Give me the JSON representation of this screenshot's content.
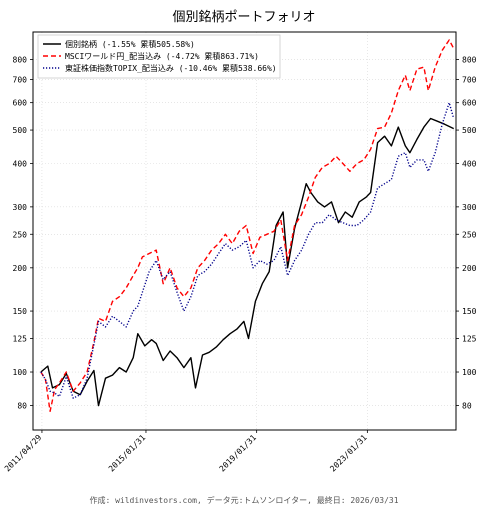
{
  "chart_data": {
    "type": "line",
    "title": "個別銘柄ポートフォリオ",
    "y_scale": "log",
    "ylim": [
      68,
      960
    ],
    "yticks": [
      80,
      100,
      125,
      150,
      200,
      250,
      300,
      400,
      500,
      600,
      700,
      800
    ],
    "x_range": [
      "2011-01-01",
      "2026-04-15"
    ],
    "x_ticks": [
      "2011/04/29",
      "2015/01/31",
      "2019/01/31",
      "2023/01/31"
    ],
    "grid": true,
    "legend_position": "top-left",
    "series": [
      {
        "name": "個別銘柄 (-1.55% 累積505.58%)",
        "color": "#000000",
        "style": "solid",
        "points": [
          [
            "2011-04",
            100
          ],
          [
            "2011-07",
            104
          ],
          [
            "2011-09",
            90
          ],
          [
            "2011-12",
            92
          ],
          [
            "2012-03",
            99
          ],
          [
            "2012-06",
            88
          ],
          [
            "2012-09",
            86
          ],
          [
            "2012-12",
            94
          ],
          [
            "2013-03",
            101
          ],
          [
            "2013-05",
            80
          ],
          [
            "2013-08",
            96
          ],
          [
            "2013-11",
            98
          ],
          [
            "2014-02",
            103
          ],
          [
            "2014-05",
            100
          ],
          [
            "2014-08",
            110
          ],
          [
            "2014-10",
            129
          ],
          [
            "2015-01",
            119
          ],
          [
            "2015-04",
            124
          ],
          [
            "2015-06",
            121
          ],
          [
            "2015-09",
            108
          ],
          [
            "2015-12",
            115
          ],
          [
            "2016-03",
            110
          ],
          [
            "2016-06",
            103
          ],
          [
            "2016-09",
            110
          ],
          [
            "2016-11",
            90
          ],
          [
            "2017-02",
            112
          ],
          [
            "2017-05",
            114
          ],
          [
            "2017-08",
            118
          ],
          [
            "2017-11",
            124
          ],
          [
            "2018-02",
            129
          ],
          [
            "2018-05",
            133
          ],
          [
            "2018-08",
            140
          ],
          [
            "2018-10",
            125
          ],
          [
            "2019-01",
            160
          ],
          [
            "2019-04",
            180
          ],
          [
            "2019-07",
            195
          ],
          [
            "2019-10",
            265
          ],
          [
            "2020-01",
            290
          ],
          [
            "2020-03",
            200
          ],
          [
            "2020-06",
            260
          ],
          [
            "2020-09",
            310
          ],
          [
            "2020-11",
            350
          ],
          [
            "2021-01",
            330
          ],
          [
            "2021-04",
            310
          ],
          [
            "2021-07",
            300
          ],
          [
            "2021-10",
            310
          ],
          [
            "2022-01",
            270
          ],
          [
            "2022-04",
            290
          ],
          [
            "2022-07",
            280
          ],
          [
            "2022-10",
            310
          ],
          [
            "2023-01",
            320
          ],
          [
            "2023-03",
            330
          ],
          [
            "2023-06",
            460
          ],
          [
            "2023-09",
            480
          ],
          [
            "2023-12",
            450
          ],
          [
            "2024-03",
            510
          ],
          [
            "2024-06",
            450
          ],
          [
            "2024-08",
            430
          ],
          [
            "2024-11",
            470
          ],
          [
            "2025-02",
            510
          ],
          [
            "2025-05",
            540
          ],
          [
            "2025-08",
            530
          ],
          [
            "2025-11",
            520
          ],
          [
            "2026-03",
            505
          ]
        ]
      },
      {
        "name": "MSCIワールド円_配当込み (-4.72% 累積863.71%)",
        "color": "#ff0000",
        "style": "dashed",
        "points": [
          [
            "2011-04",
            100
          ],
          [
            "2011-06",
            95
          ],
          [
            "2011-08",
            77
          ],
          [
            "2011-10",
            89
          ],
          [
            "2011-12",
            93
          ],
          [
            "2012-03",
            100
          ],
          [
            "2012-06",
            88
          ],
          [
            "2012-09",
            93
          ],
          [
            "2012-12",
            100
          ],
          [
            "2013-03",
            122
          ],
          [
            "2013-05",
            143
          ],
          [
            "2013-08",
            140
          ],
          [
            "2013-11",
            160
          ],
          [
            "2014-02",
            165
          ],
          [
            "2014-05",
            175
          ],
          [
            "2014-08",
            190
          ],
          [
            "2014-10",
            200
          ],
          [
            "2014-12",
            215
          ],
          [
            "2015-03",
            220
          ],
          [
            "2015-06",
            225
          ],
          [
            "2015-09",
            180
          ],
          [
            "2015-12",
            200
          ],
          [
            "2016-03",
            175
          ],
          [
            "2016-06",
            165
          ],
          [
            "2016-09",
            175
          ],
          [
            "2016-12",
            200
          ],
          [
            "2017-03",
            210
          ],
          [
            "2017-06",
            225
          ],
          [
            "2017-09",
            235
          ],
          [
            "2017-12",
            250
          ],
          [
            "2018-03",
            235
          ],
          [
            "2018-06",
            255
          ],
          [
            "2018-09",
            265
          ],
          [
            "2018-12",
            220
          ],
          [
            "2019-03",
            245
          ],
          [
            "2019-06",
            250
          ],
          [
            "2019-09",
            255
          ],
          [
            "2019-12",
            275
          ],
          [
            "2020-03",
            210
          ],
          [
            "2020-06",
            265
          ],
          [
            "2020-09",
            285
          ],
          [
            "2020-12",
            320
          ],
          [
            "2021-03",
            365
          ],
          [
            "2021-06",
            390
          ],
          [
            "2021-09",
            400
          ],
          [
            "2021-12",
            420
          ],
          [
            "2022-03",
            400
          ],
          [
            "2022-06",
            380
          ],
          [
            "2022-09",
            400
          ],
          [
            "2022-12",
            410
          ],
          [
            "2023-03",
            440
          ],
          [
            "2023-06",
            505
          ],
          [
            "2023-09",
            510
          ],
          [
            "2023-12",
            560
          ],
          [
            "2024-03",
            650
          ],
          [
            "2024-06",
            720
          ],
          [
            "2024-08",
            650
          ],
          [
            "2024-11",
            750
          ],
          [
            "2025-02",
            760
          ],
          [
            "2025-04",
            650
          ],
          [
            "2025-07",
            760
          ],
          [
            "2025-10",
            850
          ],
          [
            "2026-01",
            910
          ],
          [
            "2026-03",
            860
          ]
        ]
      },
      {
        "name": "東証株価指数TOPIX_配当込み (-10.46% 累積538.66%)",
        "color": "#00008b",
        "style": "dotted",
        "points": [
          [
            "2011-04",
            100
          ],
          [
            "2011-06",
            95
          ],
          [
            "2011-08",
            88
          ],
          [
            "2011-10",
            87
          ],
          [
            "2011-12",
            85
          ],
          [
            "2012-03",
            97
          ],
          [
            "2012-06",
            84
          ],
          [
            "2012-09",
            86
          ],
          [
            "2012-12",
            96
          ],
          [
            "2013-03",
            120
          ],
          [
            "2013-05",
            140
          ],
          [
            "2013-08",
            135
          ],
          [
            "2013-11",
            145
          ],
          [
            "2014-02",
            140
          ],
          [
            "2014-05",
            135
          ],
          [
            "2014-08",
            150
          ],
          [
            "2014-10",
            155
          ],
          [
            "2014-12",
            170
          ],
          [
            "2015-03",
            195
          ],
          [
            "2015-06",
            210
          ],
          [
            "2015-09",
            185
          ],
          [
            "2015-12",
            195
          ],
          [
            "2016-03",
            170
          ],
          [
            "2016-06",
            150
          ],
          [
            "2016-09",
            165
          ],
          [
            "2016-12",
            190
          ],
          [
            "2017-03",
            195
          ],
          [
            "2017-06",
            205
          ],
          [
            "2017-09",
            220
          ],
          [
            "2017-12",
            235
          ],
          [
            "2018-03",
            225
          ],
          [
            "2018-06",
            230
          ],
          [
            "2018-09",
            240
          ],
          [
            "2018-12",
            200
          ],
          [
            "2019-03",
            210
          ],
          [
            "2019-06",
            205
          ],
          [
            "2019-09",
            210
          ],
          [
            "2019-12",
            230
          ],
          [
            "2020-03",
            190
          ],
          [
            "2020-06",
            210
          ],
          [
            "2020-09",
            225
          ],
          [
            "2020-12",
            250
          ],
          [
            "2021-03",
            270
          ],
          [
            "2021-06",
            270
          ],
          [
            "2021-09",
            285
          ],
          [
            "2021-12",
            275
          ],
          [
            "2022-03",
            270
          ],
          [
            "2022-06",
            265
          ],
          [
            "2022-09",
            265
          ],
          [
            "2022-12",
            275
          ],
          [
            "2023-03",
            290
          ],
          [
            "2023-06",
            340
          ],
          [
            "2023-09",
            350
          ],
          [
            "2023-12",
            360
          ],
          [
            "2024-03",
            420
          ],
          [
            "2024-06",
            430
          ],
          [
            "2024-08",
            390
          ],
          [
            "2024-11",
            410
          ],
          [
            "2025-02",
            410
          ],
          [
            "2025-04",
            380
          ],
          [
            "2025-07",
            430
          ],
          [
            "2025-10",
            520
          ],
          [
            "2026-01",
            600
          ],
          [
            "2026-03",
            540
          ]
        ]
      }
    ]
  },
  "footer": "作成: wildinvestors.com, データ元:トムソンロイター, 最終日: 2026/03/31"
}
